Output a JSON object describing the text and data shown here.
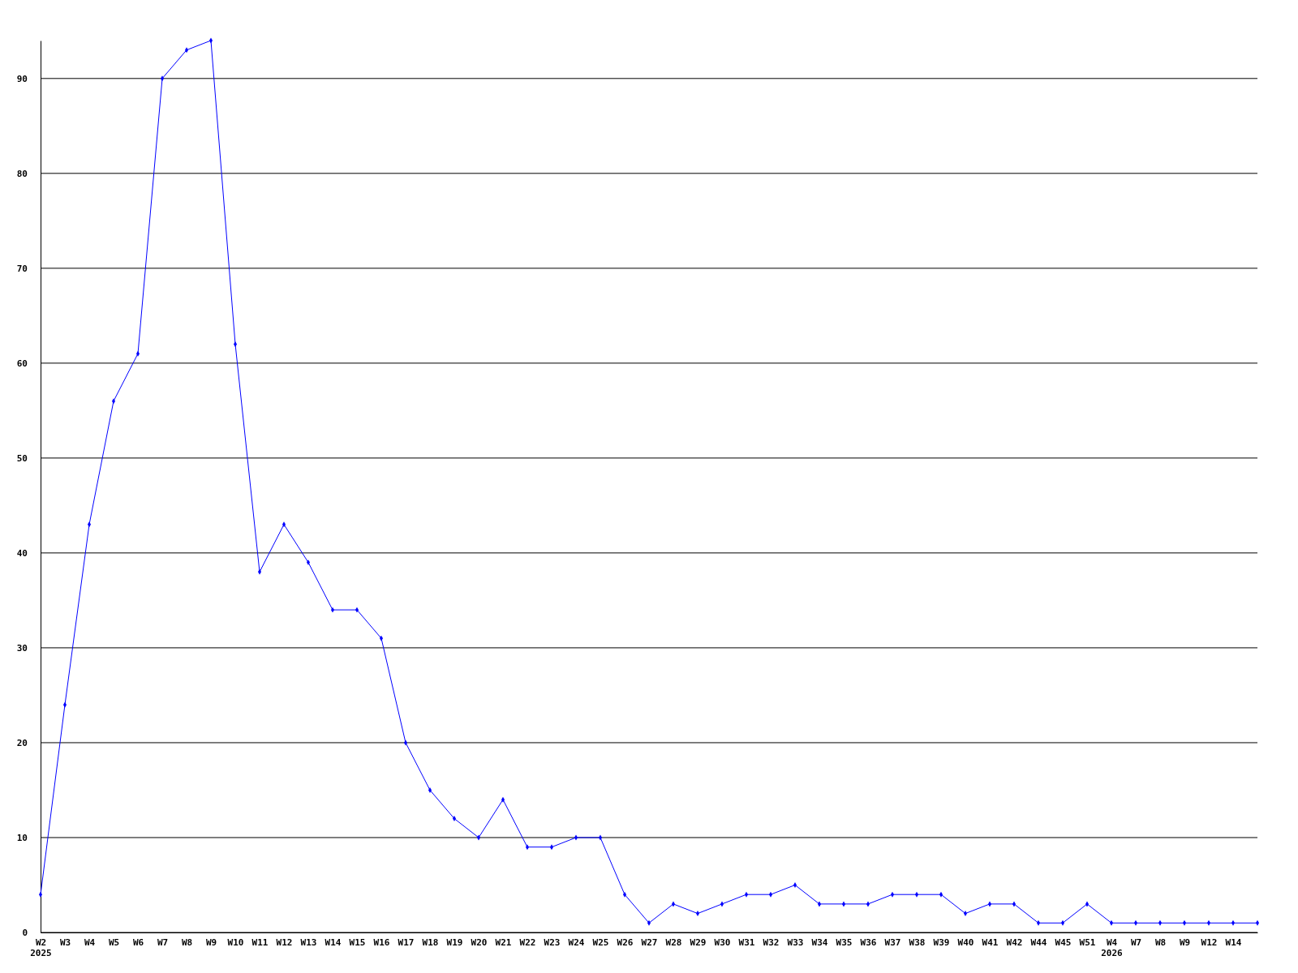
{
  "chart_data": {
    "type": "line",
    "categories": [
      "W2\n2025",
      "W3",
      "W4",
      "W5",
      "W6",
      "W7",
      "W8",
      "W9",
      "W10",
      "W11",
      "W12",
      "W13",
      "W14",
      "W15",
      "W16",
      "W17",
      "W18",
      "W19",
      "W20",
      "W21",
      "W22",
      "W23",
      "W24",
      "W25",
      "W26",
      "W27",
      "W28",
      "W29",
      "W30",
      "W31",
      "W32",
      "W33",
      "W34",
      "W35",
      "W36",
      "W37",
      "W38",
      "W39",
      "W40",
      "W41",
      "W42",
      "W44",
      "W45",
      "W51",
      "W4\n2026",
      "W7",
      "W8",
      "W9",
      "W12",
      "W14",
      null
    ],
    "series": [
      {
        "color": "#0000ff",
        "values": [
          4,
          24,
          43,
          56,
          61,
          90,
          93,
          94,
          62,
          38,
          43,
          39,
          34,
          34,
          31,
          20,
          15,
          12,
          10,
          14,
          9,
          9,
          10,
          10,
          4,
          1,
          3,
          2,
          3,
          4,
          4,
          5,
          3,
          3,
          3,
          4,
          4,
          4,
          2,
          3,
          3,
          1,
          1,
          3,
          1,
          1,
          1,
          1,
          1,
          1,
          1
        ]
      }
    ],
    "ylim": [
      0,
      94
    ],
    "yticks": [
      0,
      10,
      20,
      30,
      40,
      50,
      60,
      70,
      80,
      90
    ],
    "grid": "y",
    "marker": "diamond",
    "line_style": "solid"
  }
}
